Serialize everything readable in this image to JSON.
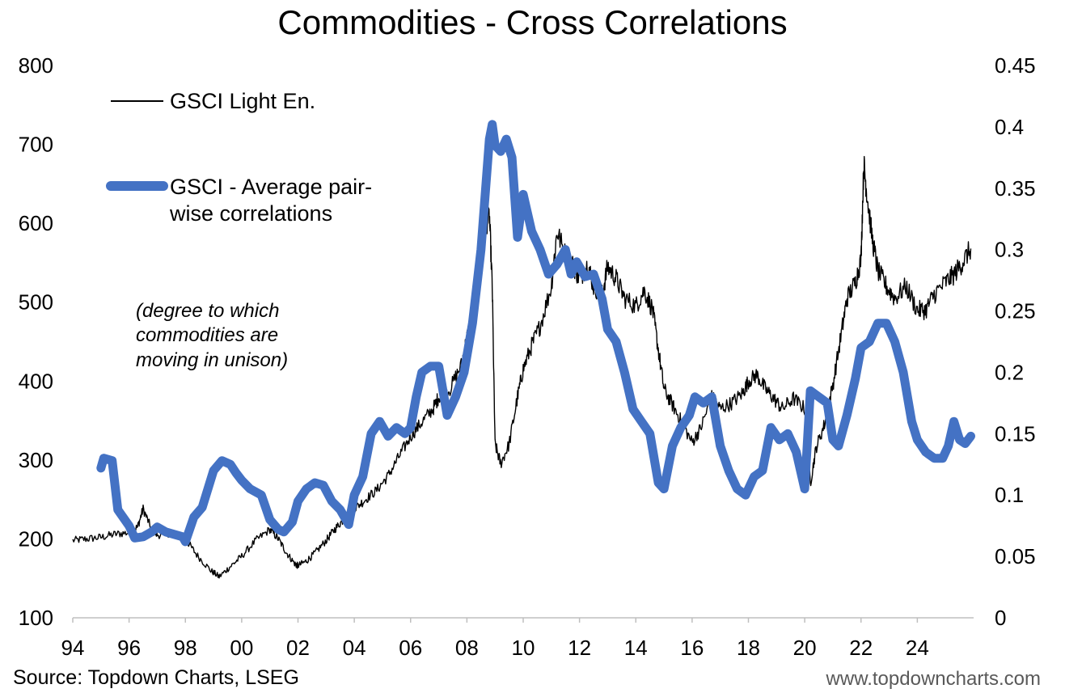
{
  "chart_data": {
    "type": "line",
    "title": "Commodities - Cross Correlations",
    "xlabel": "",
    "ylabel_left": "",
    "ylabel_right": "",
    "x_range": [
      1994,
      2026
    ],
    "x_ticks": [
      1994,
      1996,
      1998,
      2000,
      2002,
      2004,
      2006,
      2008,
      2010,
      2012,
      2014,
      2016,
      2018,
      2020,
      2022,
      2024
    ],
    "x_tick_labels": [
      "94",
      "96",
      "98",
      "00",
      "02",
      "04",
      "06",
      "08",
      "10",
      "12",
      "14",
      "16",
      "18",
      "20",
      "22",
      "24"
    ],
    "y_left": {
      "range": [
        100,
        800
      ],
      "ticks": [
        "100",
        "200",
        "300",
        "400",
        "500",
        "600",
        "700",
        "800"
      ]
    },
    "y_right": {
      "range": [
        0,
        0.45
      ],
      "ticks": [
        "0",
        "0.05",
        "0.1",
        "0.15",
        "0.2",
        "0.25",
        "0.3",
        "0.35",
        "0.4",
        "0.45"
      ]
    },
    "gridlines": false,
    "legend_position": "top-left",
    "series": [
      {
        "name": "GSCI Light En.",
        "axis": "left",
        "color": "#000000",
        "style": "thin",
        "x": [
          1994.0,
          1994.5,
          1995.0,
          1995.5,
          1996.0,
          1996.3,
          1996.5,
          1996.8,
          1997.0,
          1997.5,
          1998.0,
          1998.4,
          1998.9,
          1999.2,
          1999.6,
          2000.0,
          2000.5,
          2001.0,
          2001.3,
          2001.6,
          2001.9,
          2002.0,
          2002.3,
          2002.6,
          2003.0,
          2003.3,
          2003.6,
          2004.0,
          2004.4,
          2004.8,
          2005.2,
          2005.6,
          2006.0,
          2006.4,
          2006.8,
          2007.0,
          2007.4,
          2007.8,
          2008.0,
          2008.2,
          2008.4,
          2008.6,
          2008.8,
          2008.9,
          2009.0,
          2009.2,
          2009.5,
          2009.8,
          2010.0,
          2010.3,
          2010.6,
          2011.0,
          2011.2,
          2011.5,
          2011.8,
          2012.0,
          2012.3,
          2012.5,
          2012.8,
          2013.0,
          2013.3,
          2013.6,
          2014.0,
          2014.3,
          2014.6,
          2014.8,
          2015.0,
          2015.3,
          2015.6,
          2016.0,
          2016.3,
          2016.7,
          2017.0,
          2017.4,
          2017.8,
          2018.0,
          2018.3,
          2018.6,
          2018.9,
          2019.2,
          2019.6,
          2020.0,
          2020.2,
          2020.4,
          2020.7,
          2021.0,
          2021.3,
          2021.5,
          2021.8,
          2022.0,
          2022.1,
          2022.2,
          2022.4,
          2022.6,
          2022.9,
          2023.2,
          2023.6,
          2024.0,
          2024.3,
          2024.6,
          2025.0,
          2025.3,
          2025.6,
          2025.9
        ],
        "values": [
          198,
          200,
          202,
          206,
          208,
          215,
          238,
          212,
          205,
          208,
          200,
          180,
          160,
          152,
          165,
          178,
          198,
          212,
          200,
          182,
          168,
          166,
          172,
          182,
          198,
          212,
          224,
          238,
          250,
          262,
          280,
          305,
          330,
          348,
          365,
          380,
          390,
          420,
          455,
          485,
          530,
          590,
          610,
          520,
          320,
          295,
          320,
          380,
          415,
          445,
          470,
          520,
          590,
          560,
          545,
          530,
          548,
          520,
          510,
          545,
          530,
          505,
          495,
          515,
          490,
          440,
          390,
          370,
          350,
          322,
          340,
          380,
          365,
          372,
          385,
          400,
          408,
          390,
          378,
          365,
          378,
          365,
          270,
          315,
          345,
          395,
          460,
          505,
          525,
          555,
          675,
          640,
          580,
          540,
          520,
          505,
          520,
          490,
          490,
          510,
          525,
          535,
          550,
          568
        ]
      },
      {
        "name": "GSCI - Average pair-wise correlations",
        "axis": "right",
        "color": "#4472C4",
        "style": "thick",
        "x": [
          1995.0,
          1995.1,
          1995.4,
          1995.6,
          1996.0,
          1996.2,
          1996.5,
          1996.8,
          1997.0,
          1997.3,
          1997.6,
          1997.9,
          1998.0,
          1998.3,
          1998.6,
          1998.8,
          1999.0,
          1999.3,
          1999.6,
          1999.8,
          2000.0,
          2000.3,
          2000.7,
          2001.0,
          2001.3,
          2001.5,
          2001.8,
          2002.0,
          2002.3,
          2002.6,
          2002.9,
          2003.2,
          2003.5,
          2003.8,
          2004.0,
          2004.3,
          2004.6,
          2004.9,
          2005.2,
          2005.5,
          2005.8,
          2006.0,
          2006.2,
          2006.4,
          2006.7,
          2007.0,
          2007.3,
          2007.6,
          2007.9,
          2008.2,
          2008.5,
          2008.8,
          2008.9,
          2009.0,
          2009.2,
          2009.4,
          2009.6,
          2009.8,
          2010.0,
          2010.3,
          2010.6,
          2010.9,
          2011.2,
          2011.5,
          2011.7,
          2011.9,
          2012.2,
          2012.5,
          2012.8,
          2013.0,
          2013.3,
          2013.6,
          2013.9,
          2014.2,
          2014.5,
          2014.8,
          2015.0,
          2015.3,
          2015.6,
          2015.9,
          2016.1,
          2016.4,
          2016.7,
          2017.0,
          2017.3,
          2017.6,
          2017.9,
          2018.2,
          2018.5,
          2018.8,
          2019.1,
          2019.4,
          2019.7,
          2020.0,
          2020.2,
          2020.5,
          2020.8,
          2021.0,
          2021.2,
          2021.5,
          2021.8,
          2022.0,
          2022.3,
          2022.6,
          2022.9,
          2023.2,
          2023.5,
          2023.8,
          2024.0,
          2024.3,
          2024.6,
          2024.9,
          2025.1,
          2025.3,
          2025.5,
          2025.7,
          2025.9
        ],
        "values": [
          0.122,
          0.13,
          0.128,
          0.088,
          0.075,
          0.065,
          0.066,
          0.07,
          0.074,
          0.07,
          0.068,
          0.066,
          0.062,
          0.082,
          0.09,
          0.105,
          0.12,
          0.128,
          0.125,
          0.118,
          0.112,
          0.105,
          0.1,
          0.08,
          0.072,
          0.07,
          0.078,
          0.095,
          0.105,
          0.11,
          0.108,
          0.095,
          0.088,
          0.076,
          0.1,
          0.115,
          0.15,
          0.16,
          0.148,
          0.155,
          0.15,
          0.155,
          0.18,
          0.2,
          0.205,
          0.205,
          0.165,
          0.18,
          0.2,
          0.24,
          0.3,
          0.39,
          0.402,
          0.385,
          0.38,
          0.39,
          0.375,
          0.31,
          0.345,
          0.315,
          0.3,
          0.28,
          0.288,
          0.3,
          0.28,
          0.29,
          0.278,
          0.28,
          0.26,
          0.235,
          0.225,
          0.2,
          0.17,
          0.16,
          0.15,
          0.11,
          0.105,
          0.14,
          0.155,
          0.165,
          0.18,
          0.175,
          0.18,
          0.14,
          0.12,
          0.105,
          0.1,
          0.115,
          0.12,
          0.155,
          0.145,
          0.15,
          0.135,
          0.105,
          0.185,
          0.18,
          0.175,
          0.145,
          0.14,
          0.165,
          0.195,
          0.22,
          0.225,
          0.24,
          0.24,
          0.225,
          0.2,
          0.16,
          0.145,
          0.135,
          0.13,
          0.13,
          0.14,
          0.16,
          0.145,
          0.142,
          0.148
        ]
      }
    ],
    "annotations": [
      "(degree to which",
      "commodities are",
      "moving in unison)"
    ]
  },
  "legend": {
    "items": [
      {
        "label_lines": [
          "GSCI Light En."
        ],
        "color": "#000000",
        "style": "thin"
      },
      {
        "label_lines": [
          "GSCI - Average pair-",
          "wise correlations"
        ],
        "color": "#4472C4",
        "style": "thick"
      }
    ]
  },
  "footer": {
    "source": "Source: Topdown Charts, LSEG",
    "website": "www.topdowncharts.com"
  }
}
